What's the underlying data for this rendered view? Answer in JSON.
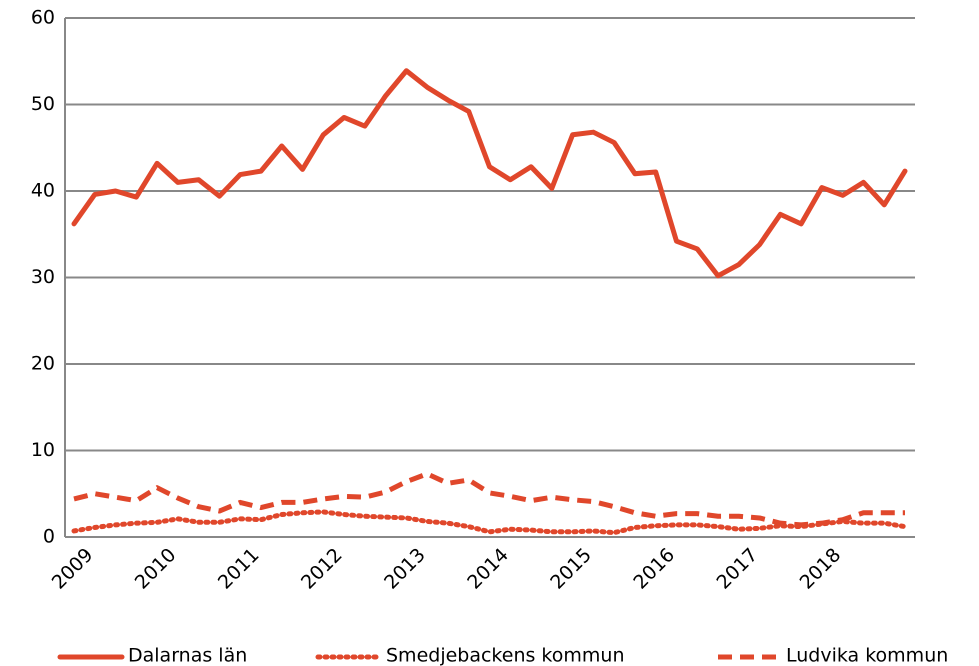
{
  "chart_data": {
    "type": "line",
    "categories": [
      "2009",
      null,
      null,
      null,
      "2010",
      null,
      null,
      null,
      "2011",
      null,
      null,
      null,
      "2012",
      null,
      null,
      null,
      "2013",
      null,
      null,
      null,
      "2014",
      null,
      null,
      null,
      "2015",
      null,
      null,
      null,
      "2016",
      null,
      null,
      null,
      "2017",
      null,
      null,
      null,
      "2018",
      null,
      null,
      null,
      null
    ],
    "series": [
      {
        "name": "Dalarnas län",
        "color": "#e0472b",
        "dash": "solid",
        "values": [
          36.2,
          39.6,
          40,
          39.3,
          43.2,
          41,
          41.3,
          39.4,
          41.9,
          42.3,
          45.2,
          42.5,
          46.5,
          48.5,
          47.5,
          51,
          53.9,
          52,
          50.5,
          49.2,
          42.8,
          41.3,
          42.8,
          40.3,
          46.5,
          46.8,
          45.6,
          42,
          42.2,
          34.2,
          33.3,
          30.2,
          31.5,
          33.8,
          37.3,
          36.2,
          40.4,
          39.5,
          41,
          38.4,
          42.3
        ]
      },
      {
        "name": "Smedjebackens kommun",
        "color": "#e0472b",
        "dash": "dotted",
        "values": [
          0.7,
          1.1,
          1.4,
          1.6,
          1.7,
          2.1,
          1.7,
          1.7,
          2.1,
          2,
          2.6,
          2.8,
          2.9,
          2.6,
          2.4,
          2.3,
          2.2,
          1.8,
          1.6,
          1.2,
          0.6,
          0.9,
          0.8,
          0.6,
          0.6,
          0.7,
          0.5,
          1.1,
          1.3,
          1.4,
          1.4,
          1.2,
          0.9,
          1,
          1.3,
          1.2,
          1.5,
          1.8,
          1.6,
          1.6,
          1.2
        ]
      },
      {
        "name": "Ludvika kommun",
        "color": "#e0472b",
        "dash": "dashed",
        "values": [
          4.4,
          5,
          4.6,
          4.2,
          5.7,
          4.5,
          3.5,
          3,
          4,
          3.4,
          4,
          4,
          4.4,
          4.7,
          4.6,
          5.2,
          6.4,
          7.3,
          6.2,
          6.6,
          5.1,
          4.7,
          4.2,
          4.6,
          4.3,
          4.1,
          3.5,
          2.8,
          2.4,
          2.7,
          2.7,
          2.4,
          2.4,
          2.2,
          1.6,
          1.4,
          1.6,
          2,
          2.8,
          2.8,
          2.8
        ]
      }
    ],
    "ylim": [
      0,
      60
    ],
    "yticks": [
      0,
      10,
      20,
      30,
      40,
      50,
      60
    ],
    "grid": true,
    "legend": "bottom"
  }
}
